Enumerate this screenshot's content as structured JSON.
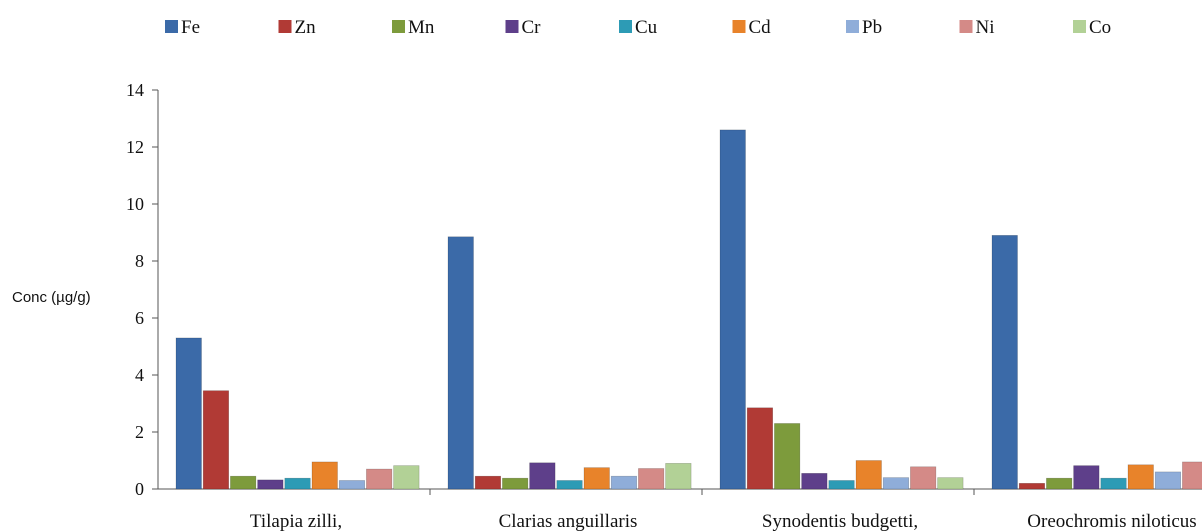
{
  "chart_data": {
    "type": "bar",
    "title": "",
    "xlabel": "",
    "ylabel": "Conc (µg/g)",
    "ylim": [
      0,
      14
    ],
    "yticks": [
      0,
      2,
      4,
      6,
      8,
      10,
      12,
      14
    ],
    "grid": false,
    "legend_position": "top",
    "categories": [
      "Tilapia zilli,",
      "Clarias anguillaris",
      "Synodentis budgetti,",
      "Oreochromis niloticus"
    ],
    "series": [
      {
        "name": "Fe",
        "color": "#3b6aa8",
        "values": [
          5.3,
          8.85,
          12.6,
          8.9
        ]
      },
      {
        "name": "Zn",
        "color": "#b13a35",
        "values": [
          3.45,
          0.45,
          2.85,
          0.2
        ]
      },
      {
        "name": "Mn",
        "color": "#7d9b3c",
        "values": [
          0.45,
          0.38,
          2.3,
          0.38
        ]
      },
      {
        "name": "Cr",
        "color": "#5e3f8a",
        "values": [
          0.32,
          0.92,
          0.55,
          0.82
        ]
      },
      {
        "name": "Cu",
        "color": "#2d9bb5",
        "values": [
          0.38,
          0.3,
          0.3,
          0.38
        ]
      },
      {
        "name": "Cd",
        "color": "#e8832a",
        "values": [
          0.95,
          0.75,
          1.0,
          0.85
        ]
      },
      {
        "name": "Pb",
        "color": "#8fadd9",
        "values": [
          0.3,
          0.45,
          0.4,
          0.6
        ]
      },
      {
        "name": "Ni",
        "color": "#d48a87",
        "values": [
          0.7,
          0.72,
          0.78,
          0.95
        ]
      },
      {
        "name": "Co",
        "color": "#b2d196",
        "values": [
          0.82,
          0.9,
          0.4,
          0.0
        ]
      }
    ]
  }
}
